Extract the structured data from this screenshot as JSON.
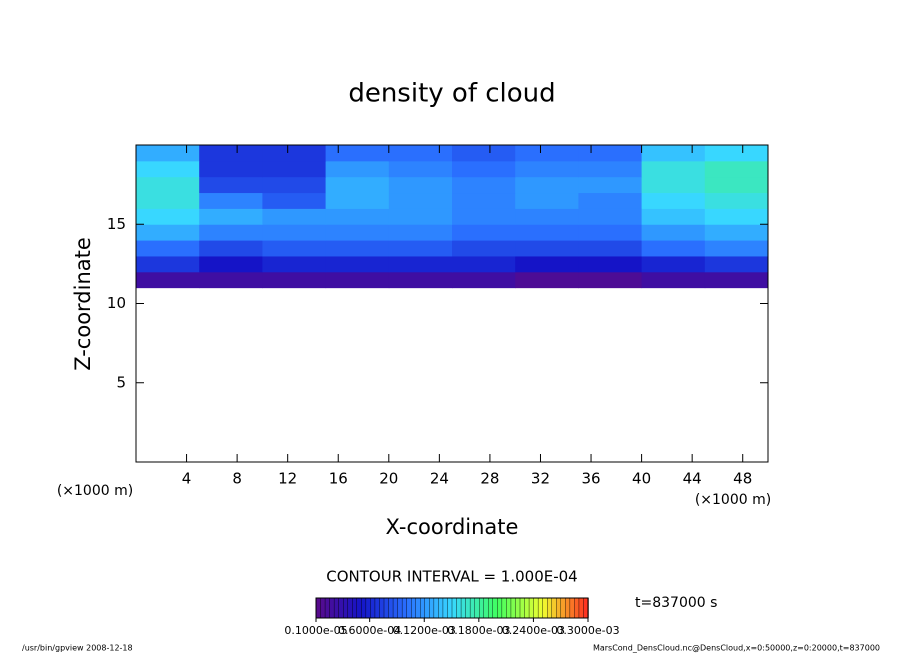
{
  "chart_data": {
    "type": "heatmap",
    "title": "density of cloud",
    "x_label": "X-coordinate",
    "y_label": "Z-coordinate",
    "x_unit": "(×1000 m)",
    "y_unit": "(×1000 m)",
    "xlim": [
      0,
      50
    ],
    "ylim": [
      0,
      20
    ],
    "xticks": [
      4,
      8,
      12,
      16,
      20,
      24,
      28,
      32,
      36,
      40,
      44,
      48
    ],
    "yticks": [
      5,
      10,
      15
    ],
    "x_bins": [
      0,
      5,
      10,
      15,
      20,
      25,
      30,
      35,
      40,
      45,
      50
    ],
    "z_bins": [
      11,
      12,
      13,
      14,
      15,
      16,
      17,
      18,
      19,
      20
    ],
    "values": [
      [
        2e-05,
        2e-05,
        2e-05,
        2e-05,
        2e-05,
        2e-05,
        1e-05,
        1e-05,
        2e-05,
        2e-05
      ],
      [
        7e-05,
        5e-05,
        6e-05,
        6e-05,
        6e-05,
        6e-05,
        5e-05,
        5e-05,
        6e-05,
        7e-05
      ],
      [
        0.0001,
        8e-05,
        9e-05,
        9e-05,
        9e-05,
        8e-05,
        8e-05,
        8e-05,
        0.0001,
        0.00011
      ],
      [
        0.00013,
        0.00011,
        0.00011,
        0.00011,
        0.00011,
        0.0001,
        0.0001,
        0.0001,
        0.00012,
        0.00013
      ],
      [
        0.00015,
        0.00013,
        0.00012,
        0.00012,
        0.00012,
        0.00011,
        0.00011,
        0.00011,
        0.00014,
        0.00015
      ],
      [
        0.00016,
        0.00011,
        9e-05,
        0.00013,
        0.00012,
        0.00011,
        0.00012,
        0.00011,
        0.00015,
        0.00016
      ],
      [
        0.00016,
        8e-05,
        8e-05,
        0.00013,
        0.00012,
        0.00011,
        0.00012,
        0.00012,
        0.00016,
        0.00017
      ],
      [
        0.00015,
        7e-05,
        7e-05,
        0.00012,
        0.00011,
        0.0001,
        0.00011,
        0.00011,
        0.00016,
        0.00017
      ],
      [
        0.00013,
        7e-05,
        7e-05,
        0.0001,
        0.0001,
        9e-05,
        0.0001,
        0.0001,
        0.00014,
        0.00015
      ]
    ],
    "colormap": [
      "#5a0a8a",
      "#1414c8",
      "#2a70ff",
      "#38d8ff",
      "#40ff60",
      "#f0ff30",
      "#ff2a20"
    ],
    "contour_interval": "CONTOUR INTERVAL = 1.000E-04",
    "time_label": "t=837000 s",
    "colorbar_ticks": [
      {
        "value": 1e-06,
        "label": "0.1000e-05"
      },
      {
        "value": 6e-05,
        "label": "0.6000e-04"
      },
      {
        "value": 0.00012,
        "label": "0.1200e-03"
      },
      {
        "value": 0.00018,
        "label": "0.1800e-03"
      },
      {
        "value": 0.00024,
        "label": "0.2400e-03"
      },
      {
        "value": 0.0003,
        "label": "0.3000e-03"
      }
    ],
    "footer_left": "/usr/bin/gpview   2008-12-18",
    "footer_right": "MarsCond_DensCloud.nc@DensCloud,x=0:50000,z=0:20000,t=837000"
  }
}
